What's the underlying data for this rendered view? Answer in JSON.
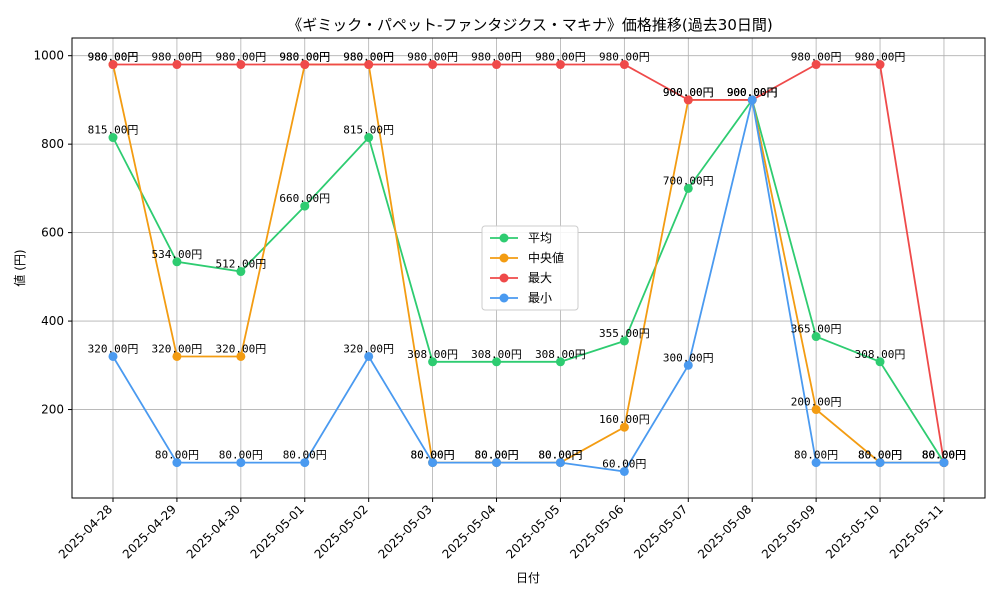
{
  "chart_data": {
    "type": "line",
    "title": "《ギミック・パペット-ファンタジクス・マキナ》価格推移(過去30日間)",
    "xlabel": "日付",
    "ylabel": "値 (円)",
    "categories": [
      "2025-04-28",
      "2025-04-29",
      "2025-04-30",
      "2025-05-01",
      "2025-05-02",
      "2025-05-03",
      "2025-05-04",
      "2025-05-05",
      "2025-05-06",
      "2025-05-07",
      "2025-05-08",
      "2025-05-09",
      "2025-05-10",
      "2025-05-11"
    ],
    "ylim": [
      0,
      1040
    ],
    "yticks": [
      200,
      400,
      600,
      800,
      1000
    ],
    "grid": true,
    "legend_position": "center",
    "label_suffix": "円",
    "series": [
      {
        "name": "平均",
        "color": "#2ecc71",
        "values": [
          815,
          534,
          512,
          660,
          815,
          308,
          308,
          308,
          355,
          700,
          900,
          365,
          308,
          80
        ]
      },
      {
        "name": "中央値",
        "color": "#f39c12",
        "values": [
          980,
          320,
          320,
          980,
          980,
          80,
          80,
          80,
          160,
          900,
          900,
          200,
          80,
          80
        ]
      },
      {
        "name": "最大",
        "color": "#ef4a4a",
        "values": [
          980,
          980,
          980,
          980,
          980,
          980,
          980,
          980,
          980,
          900,
          900,
          980,
          980,
          80
        ]
      },
      {
        "name": "最小",
        "color": "#4a9af0",
        "values": [
          320,
          80,
          80,
          80,
          320,
          80,
          80,
          80,
          60,
          300,
          900,
          80,
          80,
          80
        ]
      }
    ]
  }
}
